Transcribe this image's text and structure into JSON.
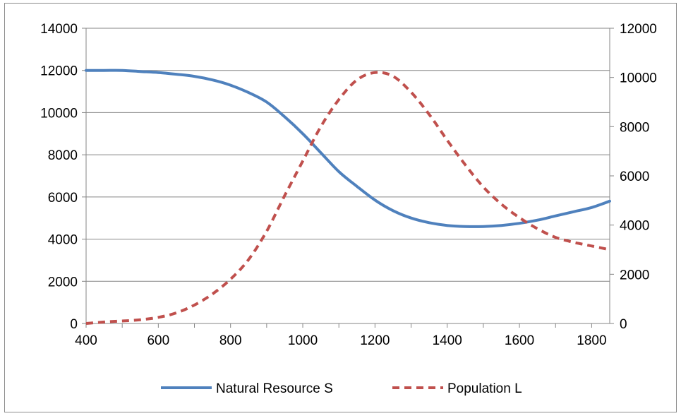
{
  "chart_data": {
    "type": "line",
    "title": "",
    "xlabel": "",
    "ylabel": "",
    "y2label": "",
    "xlim": [
      400,
      1850
    ],
    "ylim": [
      0,
      14000
    ],
    "y2lim": [
      0,
      12000
    ],
    "x_ticks": [
      400,
      600,
      800,
      1000,
      1200,
      1400,
      1600,
      1800
    ],
    "y_ticks": [
      0,
      2000,
      4000,
      6000,
      8000,
      10000,
      12000,
      14000
    ],
    "y2_ticks": [
      0,
      2000,
      4000,
      6000,
      8000,
      10000,
      12000
    ],
    "grid": "horizontal",
    "legend_position": "bottom",
    "colors": {
      "natural_resource": "#4f81bd",
      "population": "#c0504d",
      "grid": "#868686",
      "axis": "#868686"
    },
    "series": [
      {
        "name": "Natural Resource S",
        "axis": "left",
        "style": "solid",
        "x": [
          400,
          450,
          500,
          550,
          600,
          650,
          700,
          750,
          800,
          850,
          900,
          950,
          1000,
          1050,
          1100,
          1150,
          1200,
          1250,
          1300,
          1350,
          1400,
          1450,
          1500,
          1550,
          1600,
          1650,
          1700,
          1750,
          1800,
          1850
        ],
        "y": [
          12000,
          12000,
          12000,
          11950,
          11900,
          11820,
          11720,
          11550,
          11300,
          10950,
          10500,
          9800,
          9000,
          8100,
          7200,
          6500,
          5850,
          5350,
          5000,
          4780,
          4650,
          4600,
          4600,
          4650,
          4750,
          4900,
          5100,
          5300,
          5500,
          5800
        ]
      },
      {
        "name": "Population L",
        "axis": "right",
        "style": "dashed",
        "x": [
          400,
          450,
          500,
          550,
          600,
          650,
          700,
          750,
          800,
          850,
          900,
          950,
          1000,
          1050,
          1100,
          1150,
          1200,
          1250,
          1300,
          1350,
          1400,
          1450,
          1500,
          1550,
          1600,
          1650,
          1700,
          1750,
          1800,
          1850
        ],
        "y": [
          0,
          60,
          100,
          150,
          250,
          430,
          750,
          1200,
          1800,
          2600,
          3750,
          5200,
          6600,
          8000,
          9100,
          9900,
          10200,
          10050,
          9400,
          8500,
          7450,
          6450,
          5550,
          4850,
          4300,
          3850,
          3500,
          3300,
          3150,
          3000
        ]
      }
    ]
  }
}
